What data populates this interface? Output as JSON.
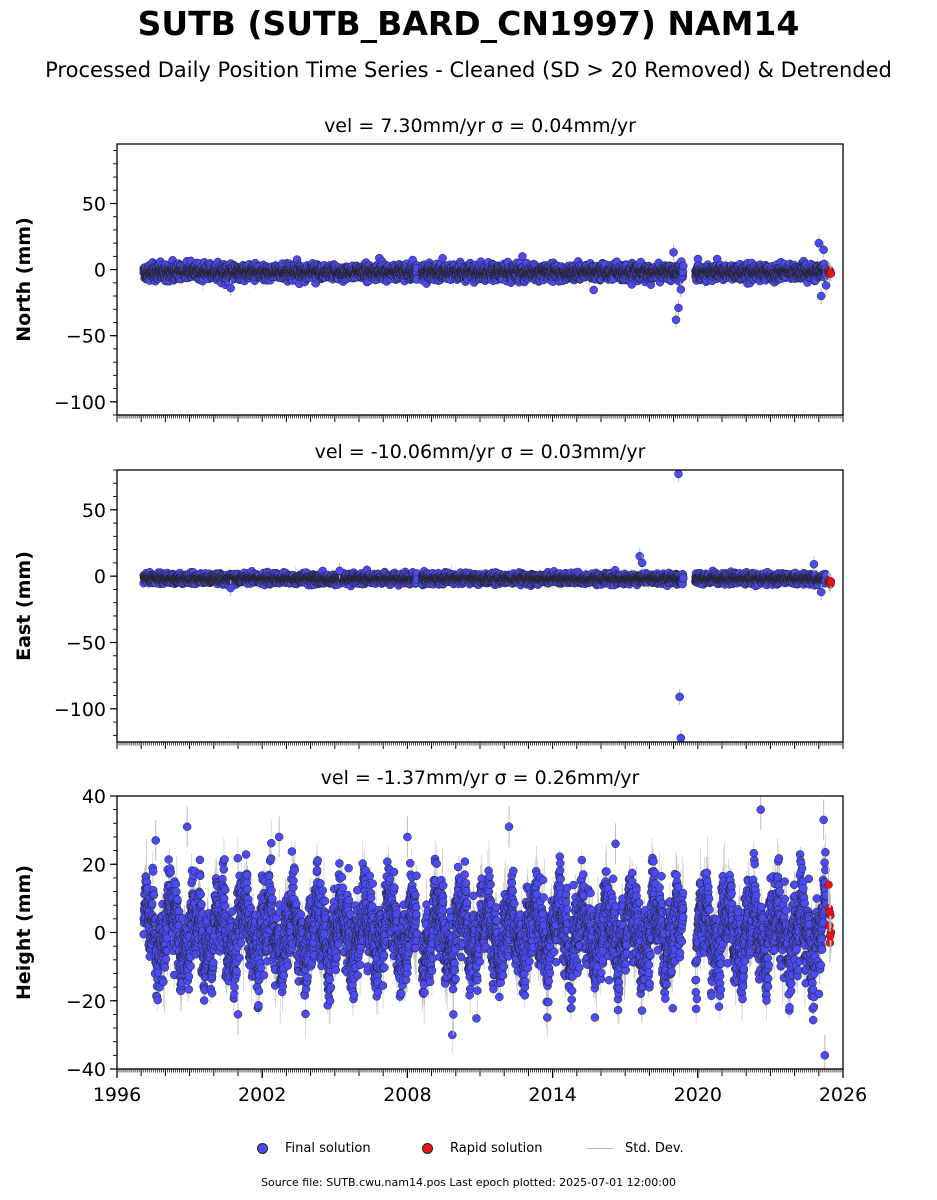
{
  "header": {
    "title": "SUTB (SUTB_BARD_CN1997) NAM14",
    "subtitle": "Processed Daily Position Time Series - Cleaned (SD > 20 Removed) & Detrended"
  },
  "legend": {
    "final_label": "Final solution",
    "rapid_label": "Rapid solution",
    "std_label": "Std. Dev."
  },
  "footer": {
    "text": "Source file: SUTB.cwu.nam14.pos  Last epoch plotted: 2025-07-01 12:00:00"
  },
  "colors": {
    "final": "#4b4bf5",
    "rapid": "#e8131b",
    "std_dev": "#bbbbbb",
    "marker_edge": "#222222"
  },
  "chart_data": [
    {
      "type": "scatter",
      "title": "vel = 7.30mm/yr   σ = 0.04mm/yr",
      "ylabel": "North (mm)",
      "xlim": [
        1996,
        2026
      ],
      "ylim": [
        -110,
        95
      ],
      "yticks": [
        50,
        0,
        -50,
        -100
      ],
      "ytick_labels": [
        "50",
        "0",
        "−50",
        "−100"
      ],
      "xticks": [],
      "gaps": [
        [
          2008.4,
          2008.6
        ],
        [
          2019.4,
          2019.9
        ]
      ],
      "data_end": 2025.3,
      "scatter_sd": 2.8,
      "std_dev_mm": 3,
      "series": [
        {
          "name": "Final solution",
          "x": [
            2000.7,
            2019.0,
            2019.1,
            2019.2,
            2019.3,
            2025.0,
            2025.1,
            2025.2,
            2025.3
          ],
          "y": [
            -14,
            13,
            -38,
            -29,
            -15,
            20,
            -20,
            15,
            -12
          ]
        },
        {
          "name": "Rapid solution",
          "x": [
            2025.4,
            2025.42,
            2025.44,
            2025.46,
            2025.48,
            2025.5
          ],
          "y": [
            -2,
            0,
            -3,
            -1,
            -2,
            -3
          ]
        }
      ]
    },
    {
      "type": "scatter",
      "title": "vel = -10.06mm/yr   σ = 0.03mm/yr",
      "ylabel": "East (mm)",
      "xlim": [
        1996,
        2026
      ],
      "ylim": [
        -125,
        80
      ],
      "yticks": [
        50,
        0,
        -50,
        -100
      ],
      "ytick_labels": [
        "50",
        "0",
        "−50",
        "−100"
      ],
      "xticks": [],
      "gaps": [
        [
          2008.4,
          2008.6
        ],
        [
          2019.4,
          2019.9
        ]
      ],
      "data_end": 2025.3,
      "scatter_sd": 1.8,
      "std_dev_mm": 3,
      "series": [
        {
          "name": "Final solution",
          "x": [
            2000.7,
            2005.2,
            2017.6,
            2017.7,
            2019.2,
            2019.25,
            2019.3,
            2024.8,
            2025.1
          ],
          "y": [
            -9,
            4,
            15,
            10,
            77,
            -91,
            -122,
            9,
            -12
          ]
        },
        {
          "name": "Rapid solution",
          "x": [
            2025.4,
            2025.42,
            2025.44,
            2025.46,
            2025.48,
            2025.5
          ],
          "y": [
            -4,
            -3,
            -5,
            -4,
            -6,
            -4
          ]
        }
      ]
    },
    {
      "type": "scatter",
      "title": "vel = -1.37mm/yr   σ = 0.26mm/yr",
      "ylabel": "Height (mm)",
      "xlim": [
        1996,
        2026
      ],
      "ylim": [
        -40,
        40
      ],
      "yticks": [
        40,
        20,
        0,
        -20,
        -40
      ],
      "ytick_labels": [
        "40",
        "20",
        "0",
        "−20",
        "−40"
      ],
      "xticks": [
        1996,
        2002,
        2008,
        2014,
        2020,
        2026
      ],
      "xtick_labels": [
        "1996",
        "2002",
        "2008",
        "2014",
        "2020",
        "2026"
      ],
      "gaps": [
        [
          2008.4,
          2008.6
        ],
        [
          2019.4,
          2019.9
        ]
      ],
      "data_end": 2025.3,
      "scatter_sd": 7.5,
      "std_dev_mm": 5,
      "series": [
        {
          "name": "Final solution",
          "x": [
            1997.6,
            1998.9,
            2001.0,
            2002.7,
            2008.0,
            2009.9,
            2012.2,
            2016.6,
            2022.6,
            2025.2,
            2025.25
          ],
          "y": [
            27,
            31,
            -24,
            28,
            28,
            -24,
            31,
            26,
            36,
            33,
            -36
          ]
        },
        {
          "name": "Rapid solution",
          "x": [
            2025.4,
            2025.42,
            2025.44,
            2025.46,
            2025.48,
            2025.5,
            2025.45,
            2025.47
          ],
          "y": [
            14,
            7,
            2,
            -3,
            5,
            0,
            6,
            -1
          ]
        }
      ]
    }
  ]
}
